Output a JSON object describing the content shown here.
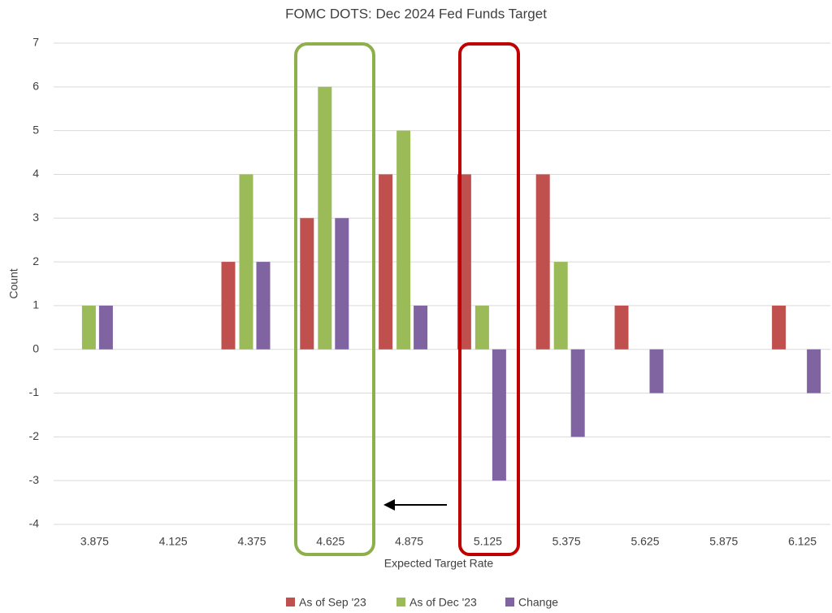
{
  "chart_data": {
    "type": "bar",
    "title": "FOMC DOTS: Dec 2024 Fed Funds Target",
    "x_label": "Expected Target Rate",
    "y_label": "Count",
    "categories": [
      "3.875",
      "4.125",
      "4.375",
      "4.625",
      "4.875",
      "5.125",
      "5.375",
      "5.625",
      "5.875",
      "6.125"
    ],
    "series": [
      {
        "name": "As of Sep '23",
        "color": "#c0504d",
        "values": [
          0,
          0,
          2,
          3,
          4,
          4,
          4,
          1,
          0,
          1
        ]
      },
      {
        "name": "As of Dec '23",
        "color": "#9bbb59",
        "values": [
          1,
          0,
          4,
          6,
          5,
          1,
          2,
          0,
          0,
          0
        ]
      },
      {
        "name": "Change",
        "color": "#8064a2",
        "values": [
          1,
          0,
          2,
          3,
          1,
          -3,
          -2,
          -1,
          0,
          -1
        ]
      }
    ],
    "ylim": [
      -4,
      7
    ],
    "yticks": [
      -4,
      -3,
      -2,
      -1,
      0,
      1,
      2,
      3,
      4,
      5,
      6,
      7
    ],
    "grid": true,
    "legend": "bottom"
  }
}
